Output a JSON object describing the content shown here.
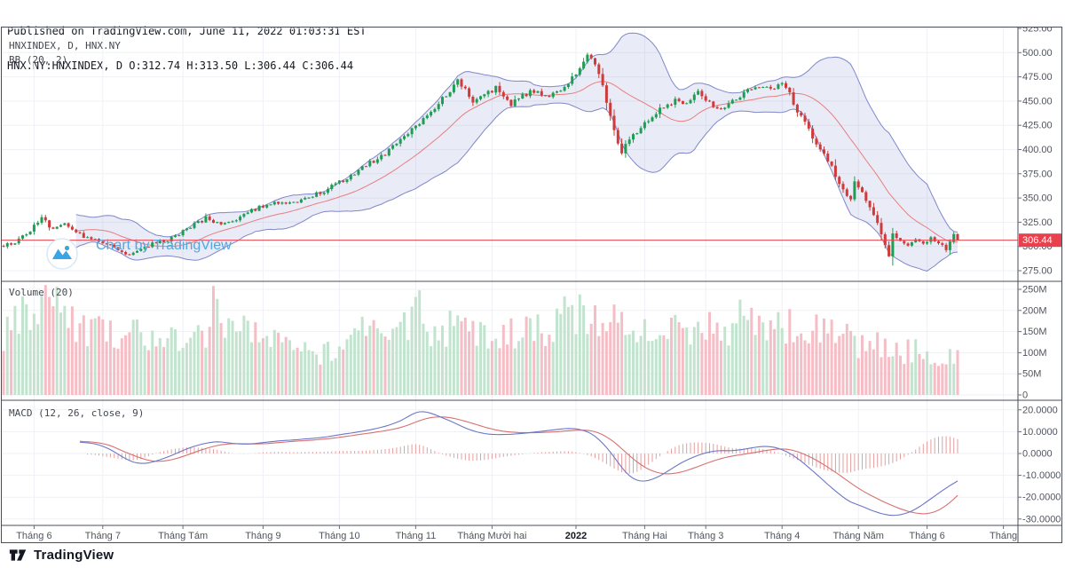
{
  "header": {
    "line1": "Published on TradingView.com, June 11, 2022 01:03:31 EST",
    "line2": "HNX.NY:HNXINDEX, D O:312.74 H:313.50 L:306.44 C:306.44"
  },
  "panes": {
    "main_legend_line1": "HNXINDEX, D, HNX.NY",
    "main_legend_line2": "BB (20, 2)",
    "volume_legend": "Volume (20)",
    "macd_legend": "MACD (12, 26, close, 9)"
  },
  "watermark": {
    "label": "Chart by TradingView"
  },
  "footer": {
    "brand": "TradingView"
  },
  "colors": {
    "up": "#1f9d54",
    "down": "#cf3a3a",
    "vol_up": "#c2e4cf",
    "vol_down": "#f5bdc5",
    "bb_line": "#8087c9",
    "bb_fill": "rgba(127,134,201,0.17)",
    "bb_basis": "#e87e7e",
    "price_line": "#e8444e",
    "price_label_bg": "#e8404d",
    "price_label_text": "#ffffff",
    "macd_line": "#6b76c7",
    "macd_signal": "#d96f6f",
    "macd_hist": "#e08f8f",
    "grid": "#eff1f6",
    "frame": "#4a4e58",
    "tick": "#6a6e78",
    "axis_text": "#50545e",
    "axis_text_bold": "#14181f"
  },
  "chart_data": {
    "type": "candlestick+volume+macd",
    "symbol": "HNXINDEX",
    "exchange": "HNX.NY",
    "interval": "D",
    "indicators": [
      "BB (20, 2)",
      "Volume (20)",
      "MACD (12, 26, close, 9)"
    ],
    "current_price": 306.44,
    "last_bar": {
      "open": 312.74,
      "high": 313.5,
      "low": 306.44,
      "close": 306.44
    },
    "price_ylim": [
      264,
      527.8
    ],
    "price_axis_ticks": [
      525,
      500,
      475,
      450,
      425,
      400,
      375,
      350,
      325,
      300,
      275
    ],
    "volume_ylim_M": [
      0,
      280
    ],
    "volume_axis_ticks": [
      {
        "label": "250M",
        "v": 250
      },
      {
        "label": "200M",
        "v": 200
      },
      {
        "label": "150M",
        "v": 150
      },
      {
        "label": "100M",
        "v": 100
      },
      {
        "label": "50M",
        "v": 50
      },
      {
        "label": "0",
        "v": 0
      }
    ],
    "macd_ylim": [
      -32,
      24
    ],
    "macd_axis_ticks": [
      {
        "label": "20.0000",
        "v": 20
      },
      {
        "label": "10.0000",
        "v": 10
      },
      {
        "label": "0.0000",
        "v": 0
      },
      {
        "label": "-10.0000",
        "v": -10
      },
      {
        "label": "-20.0000",
        "v": -20
      },
      {
        "label": "-30.0000",
        "v": -30
      }
    ],
    "n_days": 266,
    "last_day": 250,
    "seed": 20220611,
    "x_ticks": [
      {
        "i": 8,
        "label": "Tháng 6"
      },
      {
        "i": 26,
        "label": "Tháng 7"
      },
      {
        "i": 47,
        "label": "Tháng Tám"
      },
      {
        "i": 68,
        "label": "Tháng 9"
      },
      {
        "i": 88,
        "label": "Tháng 10"
      },
      {
        "i": 108,
        "label": "Tháng 11"
      },
      {
        "i": 128,
        "label": "Tháng Mười hai"
      },
      {
        "i": 150,
        "label": "2022",
        "bold": true
      },
      {
        "i": 168,
        "label": "Tháng Hai"
      },
      {
        "i": 184,
        "label": "Tháng 3"
      },
      {
        "i": 204,
        "label": "Tháng 4"
      },
      {
        "i": 224,
        "label": "Tháng Năm"
      },
      {
        "i": 242,
        "label": "Tháng 6"
      },
      {
        "i": 262,
        "label": "Tháng"
      }
    ],
    "close_anchors": [
      [
        0,
        301
      ],
      [
        3,
        305
      ],
      [
        6,
        312
      ],
      [
        10,
        330
      ],
      [
        13,
        317
      ],
      [
        16,
        322
      ],
      [
        20,
        312
      ],
      [
        24,
        306
      ],
      [
        27,
        304
      ],
      [
        30,
        297
      ],
      [
        33,
        291
      ],
      [
        36,
        298
      ],
      [
        40,
        304
      ],
      [
        44,
        308
      ],
      [
        48,
        318
      ],
      [
        53,
        329
      ],
      [
        57,
        322
      ],
      [
        61,
        327
      ],
      [
        64,
        335
      ],
      [
        68,
        342
      ],
      [
        72,
        346
      ],
      [
        76,
        344
      ],
      [
        80,
        351
      ],
      [
        84,
        357
      ],
      [
        88,
        366
      ],
      [
        92,
        376
      ],
      [
        96,
        386
      ],
      [
        100,
        396
      ],
      [
        104,
        410
      ],
      [
        108,
        424
      ],
      [
        111,
        437
      ],
      [
        114,
        448
      ],
      [
        117,
        462
      ],
      [
        119,
        472
      ],
      [
        121,
        461
      ],
      [
        123,
        449
      ],
      [
        125,
        456
      ],
      [
        127,
        460
      ],
      [
        129,
        463
      ],
      [
        131,
        453
      ],
      [
        133,
        447
      ],
      [
        135,
        452
      ],
      [
        137,
        458
      ],
      [
        139,
        461
      ],
      [
        141,
        456
      ],
      [
        143,
        453
      ],
      [
        145,
        459
      ],
      [
        147,
        464
      ],
      [
        149,
        473
      ],
      [
        151,
        486
      ],
      [
        153,
        495
      ],
      [
        154,
        497
      ],
      [
        156,
        480
      ],
      [
        158,
        450
      ],
      [
        160,
        419
      ],
      [
        162,
        398
      ],
      [
        164,
        410
      ],
      [
        166,
        419
      ],
      [
        168,
        428
      ],
      [
        171,
        438
      ],
      [
        174,
        446
      ],
      [
        176,
        451
      ],
      [
        178,
        447
      ],
      [
        180,
        452
      ],
      [
        182,
        458
      ],
      [
        184,
        452
      ],
      [
        186,
        445
      ],
      [
        188,
        441
      ],
      [
        190,
        448
      ],
      [
        193,
        455
      ],
      [
        196,
        462
      ],
      [
        199,
        467
      ],
      [
        202,
        465
      ],
      [
        204,
        468
      ],
      [
        206,
        458
      ],
      [
        208,
        440
      ],
      [
        210,
        427
      ],
      [
        212,
        413
      ],
      [
        214,
        400
      ],
      [
        216,
        388
      ],
      [
        218,
        374
      ],
      [
        220,
        358
      ],
      [
        222,
        350
      ],
      [
        223,
        368
      ],
      [
        224,
        363
      ],
      [
        226,
        346
      ],
      [
        228,
        332
      ],
      [
        230,
        313
      ],
      [
        232,
        289
      ],
      [
        233,
        312
      ],
      [
        235,
        307
      ],
      [
        237,
        299
      ],
      [
        239,
        307
      ],
      [
        241,
        302
      ],
      [
        243,
        309
      ],
      [
        245,
        304
      ],
      [
        247,
        297
      ],
      [
        249,
        312.74
      ],
      [
        250,
        306.44
      ]
    ],
    "volume_anchors_M": [
      [
        0,
        140
      ],
      [
        4,
        200
      ],
      [
        8,
        215
      ],
      [
        12,
        230
      ],
      [
        15,
        200
      ],
      [
        18,
        165
      ],
      [
        22,
        155
      ],
      [
        26,
        150
      ],
      [
        30,
        130
      ],
      [
        34,
        150
      ],
      [
        38,
        120
      ],
      [
        42,
        135
      ],
      [
        46,
        120
      ],
      [
        50,
        150
      ],
      [
        53,
        150
      ],
      [
        55,
        258
      ],
      [
        57,
        150
      ],
      [
        60,
        140
      ],
      [
        64,
        155
      ],
      [
        68,
        140
      ],
      [
        72,
        130
      ],
      [
        76,
        105
      ],
      [
        80,
        110
      ],
      [
        84,
        95
      ],
      [
        88,
        120
      ],
      [
        92,
        150
      ],
      [
        94,
        182
      ],
      [
        96,
        160
      ],
      [
        100,
        170
      ],
      [
        104,
        185
      ],
      [
        106,
        160
      ],
      [
        108,
        235
      ],
      [
        110,
        160
      ],
      [
        114,
        150
      ],
      [
        118,
        165
      ],
      [
        122,
        150
      ],
      [
        126,
        140
      ],
      [
        130,
        150
      ],
      [
        134,
        140
      ],
      [
        138,
        160
      ],
      [
        142,
        150
      ],
      [
        146,
        170
      ],
      [
        148,
        205
      ],
      [
        150,
        175
      ],
      [
        152,
        208
      ],
      [
        154,
        185
      ],
      [
        156,
        175
      ],
      [
        158,
        190
      ],
      [
        160,
        210
      ],
      [
        162,
        195
      ],
      [
        164,
        180
      ],
      [
        167,
        150
      ],
      [
        170,
        160
      ],
      [
        173,
        175
      ],
      [
        176,
        165
      ],
      [
        179,
        140
      ],
      [
        182,
        170
      ],
      [
        185,
        155
      ],
      [
        188,
        150
      ],
      [
        191,
        165
      ],
      [
        194,
        185
      ],
      [
        197,
        170
      ],
      [
        200,
        160
      ],
      [
        203,
        150
      ],
      [
        206,
        165
      ],
      [
        209,
        175
      ],
      [
        212,
        160
      ],
      [
        215,
        170
      ],
      [
        218,
        150
      ],
      [
        221,
        140
      ],
      [
        224,
        120
      ],
      [
        227,
        130
      ],
      [
        230,
        110
      ],
      [
        233,
        125
      ],
      [
        236,
        100
      ],
      [
        239,
        110
      ],
      [
        242,
        90
      ],
      [
        245,
        95
      ],
      [
        248,
        85
      ],
      [
        250,
        95
      ]
    ],
    "volume_spikes_M": [
      [
        12,
        232
      ],
      [
        55,
        258
      ],
      [
        94,
        185
      ],
      [
        108,
        232
      ],
      [
        148,
        208
      ],
      [
        152,
        212
      ],
      [
        160,
        214
      ],
      [
        203,
        196
      ]
    ],
    "bb": {
      "period": 20,
      "mult": 2
    },
    "macd_anchors": [
      [
        20,
        5.2,
        5.6
      ],
      [
        24,
        4.6,
        5.2
      ],
      [
        28,
        2.0,
        3.8
      ],
      [
        31,
        -1.5,
        1.2
      ],
      [
        34,
        -4.2,
        -0.8
      ],
      [
        37,
        -4.8,
        -2.8
      ],
      [
        40,
        -3.5,
        -3.8
      ],
      [
        44,
        -1.0,
        -3.0
      ],
      [
        48,
        2.2,
        -0.8
      ],
      [
        52,
        4.4,
        1.8
      ],
      [
        56,
        5.6,
        3.8
      ],
      [
        60,
        4.6,
        4.6
      ],
      [
        64,
        4.2,
        4.4
      ],
      [
        68,
        5.0,
        4.4
      ],
      [
        72,
        5.8,
        5.0
      ],
      [
        76,
        6.2,
        5.6
      ],
      [
        80,
        6.8,
        6.0
      ],
      [
        84,
        7.4,
        6.6
      ],
      [
        88,
        8.6,
        7.4
      ],
      [
        92,
        9.6,
        8.4
      ],
      [
        96,
        10.8,
        9.4
      ],
      [
        100,
        12.4,
        10.4
      ],
      [
        104,
        14.8,
        11.8
      ],
      [
        107,
        18.0,
        13.6
      ],
      [
        109,
        19.6,
        15.2
      ],
      [
        112,
        18.6,
        16.6
      ],
      [
        115,
        16.4,
        16.9
      ],
      [
        118,
        14.2,
        16.2
      ],
      [
        121,
        11.6,
        14.8
      ],
      [
        124,
        9.8,
        13.2
      ],
      [
        127,
        8.8,
        11.6
      ],
      [
        130,
        8.6,
        10.4
      ],
      [
        133,
        8.8,
        9.8
      ],
      [
        136,
        9.2,
        9.5
      ],
      [
        139,
        9.8,
        9.5
      ],
      [
        142,
        10.4,
        9.7
      ],
      [
        145,
        11.0,
        10.0
      ],
      [
        148,
        11.6,
        10.4
      ],
      [
        151,
        11.2,
        10.8
      ],
      [
        154,
        9.4,
        10.6
      ],
      [
        157,
        5.0,
        8.8
      ],
      [
        160,
        -1.5,
        5.4
      ],
      [
        163,
        -9.0,
        0.6
      ],
      [
        166,
        -12.8,
        -4.0
      ],
      [
        169,
        -12.6,
        -7.4
      ],
      [
        172,
        -10.4,
        -9.2
      ],
      [
        175,
        -7.0,
        -9.4
      ],
      [
        178,
        -3.8,
        -8.4
      ],
      [
        181,
        -1.4,
        -6.6
      ],
      [
        184,
        0.4,
        -4.6
      ],
      [
        187,
        1.4,
        -2.8
      ],
      [
        190,
        1.2,
        -1.4
      ],
      [
        193,
        1.6,
        -0.6
      ],
      [
        196,
        2.6,
        0.2
      ],
      [
        199,
        3.4,
        1.2
      ],
      [
        202,
        3.0,
        2.0
      ],
      [
        205,
        1.2,
        2.2
      ],
      [
        208,
        -2.0,
        1.0
      ],
      [
        211,
        -6.4,
        -1.2
      ],
      [
        214,
        -11.0,
        -4.0
      ],
      [
        217,
        -15.8,
        -7.4
      ],
      [
        220,
        -20.0,
        -11.0
      ],
      [
        222,
        -22.6,
        -13.6
      ],
      [
        224,
        -23.4,
        -16.0
      ],
      [
        227,
        -25.8,
        -19.0
      ],
      [
        230,
        -27.6,
        -21.6
      ],
      [
        233,
        -28.6,
        -24.0
      ],
      [
        236,
        -27.8,
        -26.0
      ],
      [
        239,
        -25.6,
        -27.4
      ],
      [
        242,
        -22.0,
        -27.8
      ],
      [
        245,
        -18.2,
        -26.2
      ],
      [
        248,
        -14.6,
        -22.6
      ],
      [
        250,
        -12.6,
        -19.2
      ]
    ]
  }
}
